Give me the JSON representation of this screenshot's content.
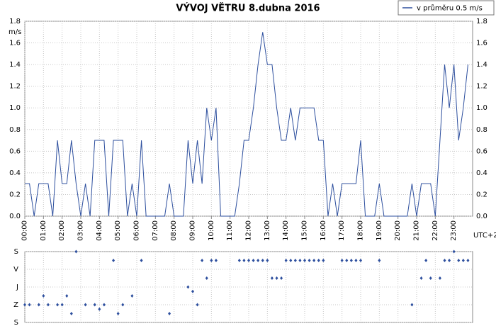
{
  "chart_data": [
    {
      "type": "line",
      "title": "VÝVOJ VĚTRU  8.dubna 2016",
      "y_label": "m/s",
      "x_label": "UTC+2",
      "xlim": [
        0,
        24
      ],
      "xticks": [
        {
          "value": 0,
          "label": "00:00"
        },
        {
          "value": 1,
          "label": "01:00"
        },
        {
          "value": 2,
          "label": "02:00"
        },
        {
          "value": 3,
          "label": "03:00"
        },
        {
          "value": 4,
          "label": "04:00"
        },
        {
          "value": 5,
          "label": "05:00"
        },
        {
          "value": 6,
          "label": "06:00"
        },
        {
          "value": 7,
          "label": "07:00"
        },
        {
          "value": 8,
          "label": "08:00"
        },
        {
          "value": 9,
          "label": "09:00"
        },
        {
          "value": 10,
          "label": "10:00"
        },
        {
          "value": 11,
          "label": "11:00"
        },
        {
          "value": 12,
          "label": "12:00"
        },
        {
          "value": 13,
          "label": "13:00"
        },
        {
          "value": 14,
          "label": "14:00"
        },
        {
          "value": 15,
          "label": "15:00"
        },
        {
          "value": 16,
          "label": "16:00"
        },
        {
          "value": 17,
          "label": "17:00"
        },
        {
          "value": 18,
          "label": "18:00"
        },
        {
          "value": 19,
          "label": "19:00"
        },
        {
          "value": 20,
          "label": "20:00"
        },
        {
          "value": 21,
          "label": "21:00"
        },
        {
          "value": 22,
          "label": "22:00"
        },
        {
          "value": 23,
          "label": "23:00"
        }
      ],
      "ylim": [
        0,
        1.8
      ],
      "yticks": [
        {
          "value": 0,
          "label": "0.0"
        },
        0.2,
        0.4,
        0.6,
        0.8,
        {
          "value": 1,
          "label": "1.0"
        },
        1.2,
        1.4,
        1.6,
        1.8
      ],
      "grid": true,
      "legend": "top-right",
      "x": [
        0,
        0.25,
        0.5,
        0.75,
        1.25,
        1.5,
        1.75,
        2,
        2.25,
        2.5,
        2.75,
        3,
        3.25,
        3.5,
        3.75,
        4.25,
        4.5,
        4.75,
        5.25,
        5.5,
        5.75,
        6,
        6.25,
        6.5,
        7.5,
        7.75,
        8,
        8.5,
        8.75,
        9,
        9.25,
        9.5,
        9.75,
        10,
        10.25,
        10.5,
        11.25,
        11.5,
        11.75,
        12,
        12.25,
        12.5,
        12.75,
        13,
        13.25,
        13.5,
        13.75,
        14,
        14.25,
        14.5,
        14.75,
        15.5,
        15.75,
        16,
        16.25,
        16.5,
        16.75,
        17,
        17.75,
        18,
        18.25,
        18.75,
        19,
        19.25,
        20.5,
        20.75,
        21,
        21.25,
        21.75,
        22,
        22.25,
        22.5,
        22.75,
        23,
        23.25,
        23.5,
        23.75
      ],
      "series": [
        {
          "name": "v průměru 0.5 m/s",
          "color": "#2d4f9e",
          "values": [
            0.3,
            0.3,
            0,
            0.3,
            0.3,
            0,
            0.7,
            0.3,
            0.3,
            0.7,
            0.3,
            0,
            0.3,
            0,
            0.7,
            0.7,
            0,
            0.7,
            0.7,
            0,
            0.3,
            0,
            0.7,
            0,
            0,
            0.3,
            0,
            0,
            0.7,
            0.3,
            0.7,
            0.3,
            1,
            0.7,
            1,
            0,
            0,
            0.3,
            0.7,
            0.7,
            1,
            1.4,
            1.7,
            1.4,
            1.4,
            1,
            0.7,
            0.7,
            1,
            0.7,
            1,
            1,
            0.7,
            0.7,
            0,
            0.3,
            0,
            0.3,
            0.3,
            0.7,
            0,
            0,
            0.3,
            0,
            0,
            0.3,
            0,
            0.3,
            0.3,
            0,
            0.7,
            1.4,
            1,
            1.4,
            0.7,
            1,
            1.4
          ]
        }
      ]
    },
    {
      "type": "scatter",
      "xlim": [
        0,
        24
      ],
      "ylim": [
        0,
        360
      ],
      "yticks": [
        {
          "value": 0,
          "label": "S"
        },
        {
          "value": 90,
          "label": "V"
        },
        {
          "value": 180,
          "label": "J"
        },
        {
          "value": 270,
          "label": "Z"
        },
        {
          "value": 360,
          "label": "S"
        }
      ],
      "color": "#2d4f9e",
      "x": [
        0,
        0.25,
        0.75,
        1,
        1.25,
        1.75,
        2,
        2.25,
        2.5,
        2.75,
        3.25,
        3.75,
        4,
        4.25,
        4.75,
        5,
        5.25,
        5.75,
        6.25,
        7.75,
        8.75,
        9,
        9.25,
        9.5,
        9.75,
        10,
        10.25,
        11.5,
        11.75,
        12,
        12.25,
        12.5,
        12.75,
        13,
        13.25,
        13.5,
        13.75,
        14,
        14.25,
        14.5,
        14.75,
        15,
        15.25,
        15.5,
        15.75,
        16,
        17,
        17.25,
        17.5,
        17.75,
        18,
        19,
        20.75,
        21.25,
        21.5,
        21.75,
        22.25,
        22.5,
        22.75,
        23,
        23.25,
        23.5,
        23.75
      ],
      "values": [
        270,
        270,
        270,
        225,
        270,
        270,
        270,
        225,
        315,
        0,
        270,
        270,
        292.5,
        270,
        45,
        315,
        270,
        225,
        45,
        315,
        180,
        202.5,
        270,
        45,
        135,
        45,
        45,
        45,
        45,
        45,
        45,
        45,
        45,
        45,
        135,
        135,
        135,
        45,
        45,
        45,
        45,
        45,
        45,
        45,
        45,
        45,
        45,
        45,
        45,
        45,
        45,
        45,
        270,
        135,
        45,
        135,
        135,
        45,
        45,
        0,
        45,
        45,
        45
      ]
    }
  ]
}
